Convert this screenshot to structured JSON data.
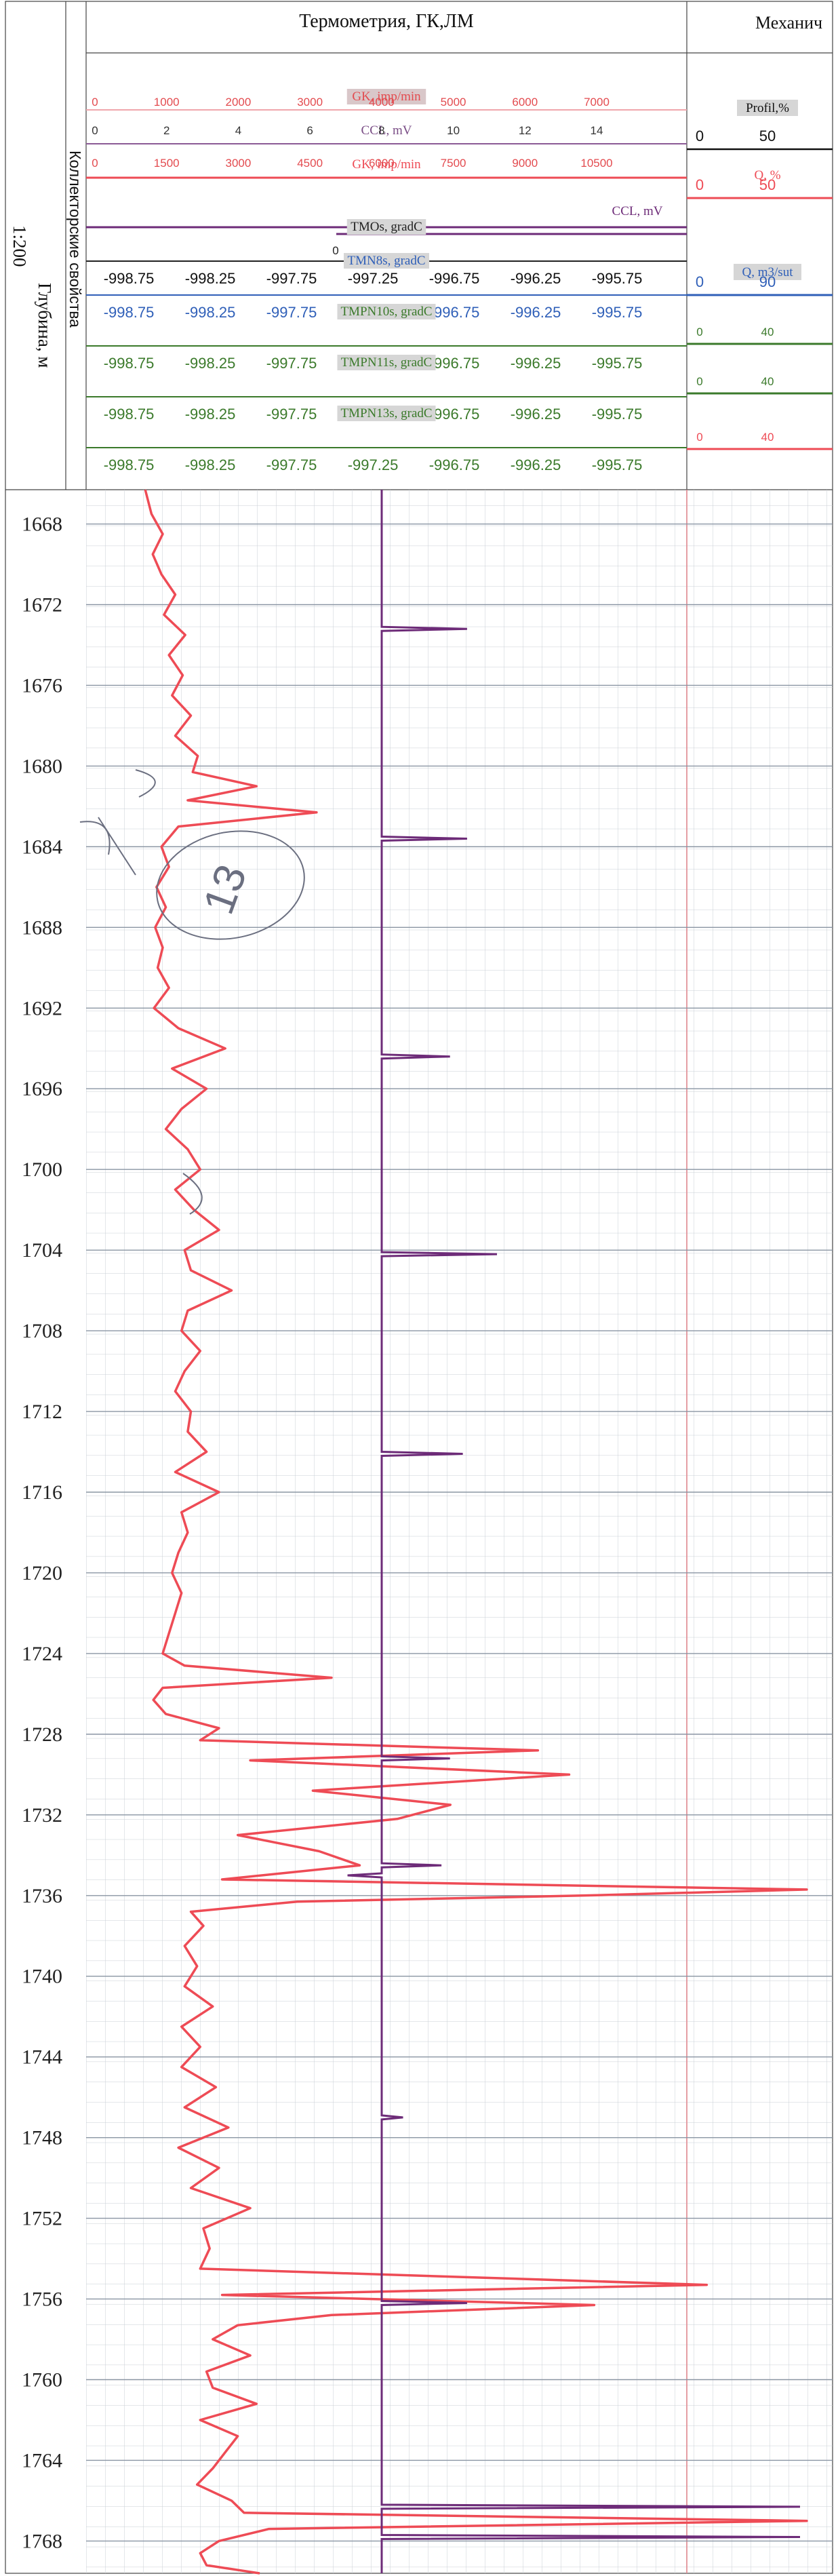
{
  "header": {
    "title_main": "Термометрия, ГК,ЛМ",
    "title_right": "Механич",
    "depth_title": "Глубина, м",
    "depth_scale": "1:200",
    "reservoir_title": "Коллекторские свойства"
  },
  "scales": [
    {
      "name": "GK, imp/min",
      "color": "#e8a0a6",
      "name_color": "#e34b4f",
      "line_color": "#f0a6ab",
      "label_color": "#e34b4f",
      "ticks": [
        "0",
        "1000",
        "2000",
        "3000",
        "4000",
        "5000",
        "6000",
        "7000"
      ],
      "name_bg": "#d9c7c9"
    },
    {
      "name": "CCL, mV",
      "color": "#7a4d86",
      "name_color": "#7a4d86",
      "line_color": "#8b5a95",
      "label_color": "#333333",
      "ticks": [
        "0",
        "2",
        "4",
        "6",
        "8",
        "10",
        "12",
        "14"
      ],
      "name_bg": "none"
    },
    {
      "name": "GK, imp/min",
      "color": "#ee4b55",
      "name_color": "#ee4b55",
      "line_color": "#ee4b55",
      "label_color": "#e34b4f",
      "ticks": [
        "0",
        "1500",
        "3000",
        "4500",
        "6000",
        "7500",
        "9000",
        "10500"
      ],
      "name_bg": "none"
    },
    {
      "name": "CCL, mV",
      "color": "#6d2b78",
      "name_color": "#6d2b78",
      "line_color": "#6d2b78",
      "label_color": "#222222",
      "ticks": [
        "0"
      ],
      "name_bg": "none"
    },
    {
      "name": "TMOs, gradC",
      "color": "#222222",
      "name_color": "#222222",
      "line_color": "#222222",
      "label_color": "#111111",
      "ticks": [
        "-998.75",
        "-998.25",
        "-997.75",
        "-997.25",
        "-996.75",
        "-996.25",
        "-995.75"
      ],
      "name_bg": "#d6d6d6"
    },
    {
      "name": "TMN8s, gradC",
      "color": "#2f5fb8",
      "name_color": "#2f5fb8",
      "line_color": "#2f5fb8",
      "label_color": "#2f5fb8",
      "ticks": [
        "-998.75",
        "-998.25",
        "-997.75",
        "-997.25",
        "-996.75",
        "-996.25",
        "-995.75"
      ],
      "name_bg": "#d6d6d6"
    },
    {
      "name": "TMPN10s, gradC",
      "color": "#3b7a2b",
      "name_color": "#3b7a2b",
      "line_color": "#3b7a2b",
      "label_color": "#3b7a2b",
      "ticks": [
        "-998.75",
        "-998.25",
        "-997.75",
        "-997.25",
        "-996.75",
        "-996.25",
        "-995.75"
      ],
      "name_bg": "#d6d6d6"
    },
    {
      "name": "TMPN11s, gradC",
      "color": "#3b7a2b",
      "name_color": "#3b7a2b",
      "line_color": "#3b7a2b",
      "label_color": "#3b7a2b",
      "ticks": [
        "-998.75",
        "-998.25",
        "-997.75",
        "-997.25",
        "-996.75",
        "-996.25",
        "-995.75"
      ],
      "name_bg": "#d6d6d6"
    },
    {
      "name": "TMPN13s, gradC",
      "color": "#3b7a2b",
      "name_color": "#3b7a2b",
      "line_color": "#3b7a2b",
      "label_color": "#3b7a2b",
      "ticks": [
        "-998.75",
        "-998.25",
        "-997.75",
        "-997.25",
        "-996.75",
        "-996.25",
        "-995.75"
      ],
      "name_bg": "#d6d6d6"
    }
  ],
  "right_scales": [
    {
      "name": "Profil,%",
      "color": "#111111",
      "ticks": [
        "0",
        "50"
      ]
    },
    {
      "name": "Q, %",
      "color": "#ee4b55",
      "ticks": [
        "0",
        "50"
      ]
    },
    {
      "name": "Q, m3/sut",
      "color": "#2f5fb8",
      "ticks": [
        "0",
        "90"
      ]
    },
    {
      "name": "",
      "color": "#3b7a2b",
      "ticks": [
        "0",
        "40"
      ]
    },
    {
      "name": "",
      "color": "#3b7a2b",
      "ticks": [
        "0",
        "40"
      ]
    },
    {
      "name": "",
      "color": "#ee4b55",
      "ticks": [
        "0",
        "40"
      ]
    }
  ],
  "chart_data": {
    "type": "line",
    "depth_labels": [
      "1668",
      "1672",
      "1676",
      "1680",
      "1684",
      "1688",
      "1692",
      "1696",
      "1700",
      "1704",
      "1708",
      "1712",
      "1716",
      "1720",
      "1724",
      "1728",
      "1732",
      "1736",
      "1740",
      "1744",
      "1748",
      "1752",
      "1756",
      "1760",
      "1764",
      "1768"
    ],
    "depth_range": [
      1666.3,
      1769.6
    ],
    "series": [
      {
        "name": "GK, imp/min",
        "color": "#ee4b55",
        "xlim": [
          0,
          11200
        ],
        "depth": [
          1666.3,
          1667.5,
          1668.5,
          1669.5,
          1670.5,
          1671.5,
          1672.5,
          1673.5,
          1674.5,
          1675.5,
          1676.5,
          1677.5,
          1678.5,
          1679.5,
          1680.3,
          1681.0,
          1681.7,
          1682.3,
          1683.0,
          1684.0,
          1685.0,
          1686.0,
          1687.0,
          1688.0,
          1689.0,
          1690.0,
          1691.0,
          1692.0,
          1693.0,
          1694.0,
          1695.0,
          1696.0,
          1697.0,
          1698.0,
          1699.0,
          1700.0,
          1701.0,
          1702.0,
          1703.0,
          1704.0,
          1705.0,
          1706.0,
          1707.0,
          1708.0,
          1709.0,
          1710.0,
          1711.0,
          1712.0,
          1713.0,
          1714.0,
          1715.0,
          1716.0,
          1717.0,
          1718.0,
          1719.0,
          1720.0,
          1721.0,
          1722.0,
          1723.0,
          1724.0,
          1724.6,
          1725.2,
          1725.7,
          1726.3,
          1727.0,
          1727.7,
          1728.3,
          1728.8,
          1729.3,
          1730.0,
          1730.8,
          1731.5,
          1732.2,
          1733.0,
          1733.8,
          1734.5,
          1735.2,
          1735.7,
          1736.0,
          1736.3,
          1736.8,
          1737.5,
          1738.5,
          1739.5,
          1740.5,
          1741.5,
          1742.5,
          1743.5,
          1744.5,
          1745.5,
          1746.5,
          1747.5,
          1748.5,
          1749.5,
          1750.5,
          1751.5,
          1752.5,
          1753.5,
          1754.5,
          1755.3,
          1755.8,
          1756.3,
          1756.8,
          1757.3,
          1758.0,
          1758.8,
          1759.6,
          1760.4,
          1761.2,
          1762.0,
          1762.8,
          1763.6,
          1764.4,
          1765.2,
          1766.0,
          1766.6,
          1767.0,
          1767.4,
          1768.0,
          1768.6,
          1769.2,
          1769.6
        ],
        "values": [
          620,
          720,
          900,
          740,
          880,
          1100,
          920,
          1260,
          1000,
          1220,
          1050,
          1350,
          1100,
          1460,
          1380,
          2400,
          1300,
          3360,
          1150,
          880,
          1000,
          800,
          950,
          780,
          900,
          820,
          1000,
          760,
          1150,
          1900,
          1050,
          1600,
          1200,
          950,
          1300,
          1500,
          1100,
          1400,
          1800,
          1250,
          1350,
          2000,
          1300,
          1200,
          1500,
          1250,
          1100,
          1350,
          1300,
          1600,
          1100,
          1800,
          1200,
          1300,
          1150,
          1050,
          1200,
          1100,
          1000,
          900,
          1250,
          3600,
          900,
          750,
          950,
          1800,
          1500,
          6900,
          2300,
          7400,
          3300,
          5500,
          4650,
          2100,
          3400,
          4050,
          1850,
          11200,
          7600,
          3050,
          1350,
          1550,
          1250,
          1450,
          1250,
          1700,
          1200,
          1500,
          1200,
          1750,
          1250,
          1950,
          1150,
          1800,
          1350,
          2300,
          1550,
          1650,
          1500,
          9600,
          1850,
          7800,
          3600,
          2100,
          1700,
          2300,
          1600,
          1700,
          2400,
          1500,
          2100,
          1900,
          1700,
          1450,
          2000,
          2200,
          11200,
          2600,
          1800,
          1500,
          1600,
          2450
        ]
      },
      {
        "name": "CCL, mV",
        "color": "#6d2b78",
        "xlim": [
          0,
          16.2
        ],
        "base": 6.4,
        "spikes": [
          [
            1673.2,
            8.4
          ],
          [
            1683.6,
            8.4
          ],
          [
            1694.4,
            8.0
          ],
          [
            1704.2,
            9.1
          ],
          [
            1714.1,
            8.3
          ],
          [
            1729.2,
            8.0
          ],
          [
            1734.5,
            7.8
          ],
          [
            1735.0,
            5.6
          ],
          [
            1747.0,
            6.9
          ],
          [
            1756.2,
            8.4
          ],
          [
            1766.3,
            16.2
          ],
          [
            1767.8,
            16.2
          ]
        ]
      }
    ]
  },
  "annotations": [
    "13"
  ]
}
